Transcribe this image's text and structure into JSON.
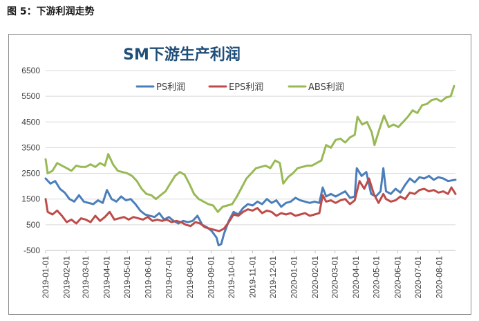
{
  "caption": "图 5：下游利润走势",
  "chart_data": {
    "type": "line",
    "title": "SM下游生产利润",
    "xlabel": "",
    "ylabel": "",
    "ylim": [
      -500,
      6500
    ],
    "yticks": [
      -500,
      500,
      1500,
      2500,
      3500,
      4500,
      5500,
      6500
    ],
    "grid": true,
    "legend_position": "top",
    "x_start": "2019-01-01",
    "x_end": "2020-08-25",
    "xtick_labels": [
      "2019-01-01",
      "2019-02-01",
      "2019-03-01",
      "2019-04-01",
      "2019-05-01",
      "2019-06-01",
      "2019-07-01",
      "2019-08-01",
      "2019-09-01",
      "2019-10-01",
      "2019-11-01",
      "2019-12-01",
      "2020-01-01",
      "2020-02-01",
      "2020-03-01",
      "2020-04-01",
      "2020-05-01",
      "2020-06-01",
      "2020-07-01",
      "2020-08-01"
    ],
    "series": [
      {
        "name": "PS利润",
        "color": "#4a7ebb",
        "points": [
          [
            "2019-01-01",
            2300
          ],
          [
            "2019-01-08",
            2100
          ],
          [
            "2019-01-15",
            2200
          ],
          [
            "2019-01-22",
            1900
          ],
          [
            "2019-01-29",
            1750
          ],
          [
            "2019-02-05",
            1500
          ],
          [
            "2019-02-12",
            1400
          ],
          [
            "2019-02-19",
            1650
          ],
          [
            "2019-02-26",
            1400
          ],
          [
            "2019-03-05",
            1350
          ],
          [
            "2019-03-12",
            1300
          ],
          [
            "2019-03-19",
            1450
          ],
          [
            "2019-03-26",
            1350
          ],
          [
            "2019-04-01",
            1850
          ],
          [
            "2019-04-08",
            1500
          ],
          [
            "2019-04-15",
            1400
          ],
          [
            "2019-04-22",
            1600
          ],
          [
            "2019-04-29",
            1450
          ],
          [
            "2019-05-06",
            1500
          ],
          [
            "2019-05-13",
            1300
          ],
          [
            "2019-05-20",
            1050
          ],
          [
            "2019-05-27",
            900
          ],
          [
            "2019-06-03",
            850
          ],
          [
            "2019-06-10",
            800
          ],
          [
            "2019-06-17",
            950
          ],
          [
            "2019-06-24",
            700
          ],
          [
            "2019-07-01",
            800
          ],
          [
            "2019-07-08",
            650
          ],
          [
            "2019-07-15",
            550
          ],
          [
            "2019-07-22",
            650
          ],
          [
            "2019-07-29",
            600
          ],
          [
            "2019-08-05",
            650
          ],
          [
            "2019-08-12",
            850
          ],
          [
            "2019-08-19",
            500
          ],
          [
            "2019-08-26",
            400
          ],
          [
            "2019-09-02",
            250
          ],
          [
            "2019-09-09",
            0
          ],
          [
            "2019-09-12",
            -300
          ],
          [
            "2019-09-16",
            -250
          ],
          [
            "2019-09-20",
            150
          ],
          [
            "2019-09-27",
            650
          ],
          [
            "2019-10-04",
            1000
          ],
          [
            "2019-10-11",
            900
          ],
          [
            "2019-10-18",
            1150
          ],
          [
            "2019-10-25",
            1300
          ],
          [
            "2019-11-01",
            1250
          ],
          [
            "2019-11-08",
            1400
          ],
          [
            "2019-11-15",
            1300
          ],
          [
            "2019-11-22",
            1500
          ],
          [
            "2019-11-29",
            1350
          ],
          [
            "2019-12-06",
            1450
          ],
          [
            "2019-12-13",
            1200
          ],
          [
            "2019-12-20",
            1350
          ],
          [
            "2019-12-27",
            1400
          ],
          [
            "2020-01-03",
            1550
          ],
          [
            "2020-01-10",
            1450
          ],
          [
            "2020-01-17",
            1400
          ],
          [
            "2020-01-24",
            1350
          ],
          [
            "2020-01-31",
            1400
          ],
          [
            "2020-02-07",
            1350
          ],
          [
            "2020-02-12",
            1950
          ],
          [
            "2020-02-17",
            1600
          ],
          [
            "2020-02-24",
            1700
          ],
          [
            "2020-03-02",
            1600
          ],
          [
            "2020-03-09",
            1700
          ],
          [
            "2020-03-16",
            1800
          ],
          [
            "2020-03-23",
            1550
          ],
          [
            "2020-03-30",
            1600
          ],
          [
            "2020-04-02",
            2700
          ],
          [
            "2020-04-09",
            2400
          ],
          [
            "2020-04-16",
            2550
          ],
          [
            "2020-04-23",
            1700
          ],
          [
            "2020-04-30",
            1600
          ],
          [
            "2020-05-07",
            1800
          ],
          [
            "2020-05-11",
            2700
          ],
          [
            "2020-05-15",
            1800
          ],
          [
            "2020-05-22",
            1700
          ],
          [
            "2020-05-29",
            1900
          ],
          [
            "2020-06-05",
            1750
          ],
          [
            "2020-06-12",
            2050
          ],
          [
            "2020-06-19",
            2300
          ],
          [
            "2020-06-26",
            2150
          ],
          [
            "2020-07-03",
            2350
          ],
          [
            "2020-07-10",
            2300
          ],
          [
            "2020-07-17",
            2400
          ],
          [
            "2020-07-24",
            2250
          ],
          [
            "2020-07-31",
            2350
          ],
          [
            "2020-08-07",
            2300
          ],
          [
            "2020-08-14",
            2200
          ],
          [
            "2020-08-25",
            2250
          ]
        ]
      },
      {
        "name": "EPS利润",
        "color": "#be4b48",
        "points": [
          [
            "2019-01-01",
            1500
          ],
          [
            "2019-01-04",
            1000
          ],
          [
            "2019-01-11",
            900
          ],
          [
            "2019-01-18",
            1050
          ],
          [
            "2019-01-25",
            850
          ],
          [
            "2019-02-01",
            600
          ],
          [
            "2019-02-08",
            700
          ],
          [
            "2019-02-15",
            550
          ],
          [
            "2019-02-22",
            750
          ],
          [
            "2019-03-01",
            700
          ],
          [
            "2019-03-08",
            600
          ],
          [
            "2019-03-15",
            850
          ],
          [
            "2019-03-22",
            650
          ],
          [
            "2019-03-29",
            800
          ],
          [
            "2019-04-05",
            1000
          ],
          [
            "2019-04-12",
            700
          ],
          [
            "2019-04-19",
            750
          ],
          [
            "2019-04-26",
            800
          ],
          [
            "2019-05-03",
            700
          ],
          [
            "2019-05-10",
            800
          ],
          [
            "2019-05-17",
            750
          ],
          [
            "2019-05-24",
            700
          ],
          [
            "2019-05-31",
            800
          ],
          [
            "2019-06-07",
            650
          ],
          [
            "2019-06-14",
            700
          ],
          [
            "2019-06-21",
            650
          ],
          [
            "2019-06-28",
            700
          ],
          [
            "2019-07-05",
            600
          ],
          [
            "2019-07-12",
            650
          ],
          [
            "2019-07-19",
            600
          ],
          [
            "2019-07-26",
            500
          ],
          [
            "2019-08-02",
            450
          ],
          [
            "2019-08-09",
            600
          ],
          [
            "2019-08-16",
            550
          ],
          [
            "2019-08-23",
            400
          ],
          [
            "2019-08-30",
            350
          ],
          [
            "2019-09-06",
            300
          ],
          [
            "2019-09-13",
            250
          ],
          [
            "2019-09-20",
            350
          ],
          [
            "2019-09-27",
            600
          ],
          [
            "2019-10-04",
            900
          ],
          [
            "2019-10-11",
            850
          ],
          [
            "2019-10-18",
            1000
          ],
          [
            "2019-10-25",
            1100
          ],
          [
            "2019-11-01",
            1050
          ],
          [
            "2019-11-08",
            1150
          ],
          [
            "2019-11-15",
            950
          ],
          [
            "2019-11-22",
            1050
          ],
          [
            "2019-11-29",
            1000
          ],
          [
            "2019-12-06",
            850
          ],
          [
            "2019-12-13",
            950
          ],
          [
            "2019-12-20",
            900
          ],
          [
            "2019-12-27",
            950
          ],
          [
            "2020-01-03",
            850
          ],
          [
            "2020-01-10",
            900
          ],
          [
            "2020-01-17",
            950
          ],
          [
            "2020-01-24",
            850
          ],
          [
            "2020-01-31",
            900
          ],
          [
            "2020-02-07",
            950
          ],
          [
            "2020-02-12",
            1650
          ],
          [
            "2020-02-17",
            1400
          ],
          [
            "2020-02-24",
            1450
          ],
          [
            "2020-03-02",
            1350
          ],
          [
            "2020-03-09",
            1450
          ],
          [
            "2020-03-16",
            1500
          ],
          [
            "2020-03-23",
            1300
          ],
          [
            "2020-03-30",
            1450
          ],
          [
            "2020-04-06",
            2200
          ],
          [
            "2020-04-13",
            1900
          ],
          [
            "2020-04-20",
            2300
          ],
          [
            "2020-04-27",
            1700
          ],
          [
            "2020-05-04",
            1350
          ],
          [
            "2020-05-11",
            1700
          ],
          [
            "2020-05-15",
            1500
          ],
          [
            "2020-05-22",
            1400
          ],
          [
            "2020-05-29",
            1450
          ],
          [
            "2020-06-05",
            1600
          ],
          [
            "2020-06-12",
            1500
          ],
          [
            "2020-06-19",
            1750
          ],
          [
            "2020-06-26",
            1700
          ],
          [
            "2020-07-03",
            1850
          ],
          [
            "2020-07-10",
            1900
          ],
          [
            "2020-07-17",
            1800
          ],
          [
            "2020-07-24",
            1850
          ],
          [
            "2020-07-31",
            1750
          ],
          [
            "2020-08-07",
            1800
          ],
          [
            "2020-08-14",
            1700
          ],
          [
            "2020-08-19",
            1950
          ],
          [
            "2020-08-25",
            1700
          ]
        ]
      },
      {
        "name": "ABS利润",
        "color": "#98b954",
        "points": [
          [
            "2019-01-01",
            3050
          ],
          [
            "2019-01-04",
            2500
          ],
          [
            "2019-01-11",
            2600
          ],
          [
            "2019-01-18",
            2900
          ],
          [
            "2019-01-25",
            2800
          ],
          [
            "2019-02-01",
            2700
          ],
          [
            "2019-02-08",
            2600
          ],
          [
            "2019-02-15",
            2800
          ],
          [
            "2019-02-22",
            2750
          ],
          [
            "2019-03-01",
            2750
          ],
          [
            "2019-03-08",
            2850
          ],
          [
            "2019-03-15",
            2750
          ],
          [
            "2019-03-22",
            2900
          ],
          [
            "2019-03-29",
            2800
          ],
          [
            "2019-04-03",
            3250
          ],
          [
            "2019-04-10",
            2850
          ],
          [
            "2019-04-17",
            2600
          ],
          [
            "2019-04-24",
            2550
          ],
          [
            "2019-05-01",
            2500
          ],
          [
            "2019-05-08",
            2400
          ],
          [
            "2019-05-15",
            2200
          ],
          [
            "2019-05-22",
            1900
          ],
          [
            "2019-05-29",
            1700
          ],
          [
            "2019-06-05",
            1650
          ],
          [
            "2019-06-12",
            1500
          ],
          [
            "2019-06-19",
            1650
          ],
          [
            "2019-06-26",
            1800
          ],
          [
            "2019-07-03",
            2100
          ],
          [
            "2019-07-10",
            2400
          ],
          [
            "2019-07-17",
            2550
          ],
          [
            "2019-07-24",
            2450
          ],
          [
            "2019-07-31",
            2100
          ],
          [
            "2019-08-07",
            1700
          ],
          [
            "2019-08-14",
            1500
          ],
          [
            "2019-08-21",
            1400
          ],
          [
            "2019-08-28",
            1300
          ],
          [
            "2019-09-04",
            1250
          ],
          [
            "2019-09-11",
            1000
          ],
          [
            "2019-09-18",
            1200
          ],
          [
            "2019-09-25",
            1250
          ],
          [
            "2019-10-02",
            1300
          ],
          [
            "2019-10-09",
            1600
          ],
          [
            "2019-10-16",
            1950
          ],
          [
            "2019-10-23",
            2300
          ],
          [
            "2019-10-30",
            2500
          ],
          [
            "2019-11-06",
            2700
          ],
          [
            "2019-11-13",
            2750
          ],
          [
            "2019-11-20",
            2800
          ],
          [
            "2019-11-27",
            2700
          ],
          [
            "2019-12-04",
            3000
          ],
          [
            "2019-12-11",
            2900
          ],
          [
            "2019-12-16",
            2100
          ],
          [
            "2019-12-23",
            2350
          ],
          [
            "2019-12-30",
            2500
          ],
          [
            "2020-01-06",
            2700
          ],
          [
            "2020-01-13",
            2750
          ],
          [
            "2020-01-20",
            2800
          ],
          [
            "2020-01-27",
            2800
          ],
          [
            "2020-02-03",
            2900
          ],
          [
            "2020-02-10",
            3000
          ],
          [
            "2020-02-17",
            3600
          ],
          [
            "2020-02-24",
            3500
          ],
          [
            "2020-03-02",
            3800
          ],
          [
            "2020-03-09",
            3850
          ],
          [
            "2020-03-16",
            3700
          ],
          [
            "2020-03-23",
            3900
          ],
          [
            "2020-03-30",
            4000
          ],
          [
            "2020-04-03",
            4700
          ],
          [
            "2020-04-10",
            4400
          ],
          [
            "2020-04-17",
            4500
          ],
          [
            "2020-04-24",
            4100
          ],
          [
            "2020-04-28",
            3600
          ],
          [
            "2020-05-05",
            4200
          ],
          [
            "2020-05-12",
            4750
          ],
          [
            "2020-05-19",
            4300
          ],
          [
            "2020-05-26",
            4400
          ],
          [
            "2020-06-02",
            4300
          ],
          [
            "2020-06-09",
            4500
          ],
          [
            "2020-06-16",
            4700
          ],
          [
            "2020-06-23",
            4950
          ],
          [
            "2020-06-30",
            4850
          ],
          [
            "2020-07-07",
            5150
          ],
          [
            "2020-07-14",
            5200
          ],
          [
            "2020-07-21",
            5350
          ],
          [
            "2020-07-28",
            5400
          ],
          [
            "2020-08-04",
            5300
          ],
          [
            "2020-08-11",
            5450
          ],
          [
            "2020-08-18",
            5500
          ],
          [
            "2020-08-23",
            5900
          ]
        ]
      }
    ]
  }
}
